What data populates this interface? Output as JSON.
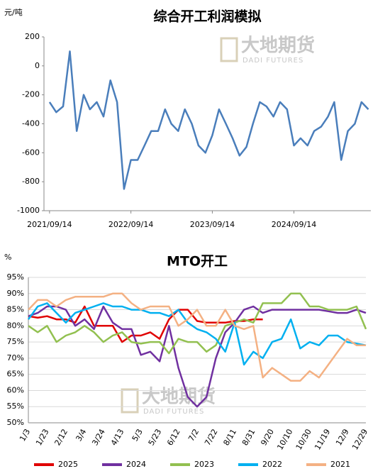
{
  "chart_data": [
    {
      "type": "line",
      "title": "综合开工利润模拟",
      "y_unit": "元/吨",
      "watermark": [
        "大地期货",
        "DADI FUTURES"
      ],
      "xlim": [
        "2021/08/20",
        "2025/08/25"
      ],
      "xticks": [
        "2021/09/14",
        "2022/09/14",
        "2023/09/14",
        "2024/09/14"
      ],
      "ylim": [
        -1000,
        200
      ],
      "yticks": [
        200,
        0,
        -200,
        -400,
        -600,
        -800,
        -1000
      ],
      "grid": false,
      "x": [
        "2021/09/14",
        "2021/10/14",
        "2021/11/14",
        "2021/12/14",
        "2022/01/14",
        "2022/02/14",
        "2022/03/14",
        "2022/04/14",
        "2022/05/14",
        "2022/06/14",
        "2022/07/14",
        "2022/08/14",
        "2022/09/14",
        "2022/10/14",
        "2022/11/14",
        "2022/12/14",
        "2023/01/14",
        "2023/02/14",
        "2023/03/14",
        "2023/04/14",
        "2023/05/14",
        "2023/06/14",
        "2023/07/14",
        "2023/08/14",
        "2023/09/14",
        "2023/10/14",
        "2023/11/14",
        "2023/12/14",
        "2024/01/14",
        "2024/02/14",
        "2024/03/14",
        "2024/04/14",
        "2024/05/14",
        "2024/06/14",
        "2024/07/14",
        "2024/08/14",
        "2024/09/14",
        "2024/10/14",
        "2024/11/14",
        "2024/12/14",
        "2025/01/14",
        "2025/02/14",
        "2025/03/14",
        "2025/04/14",
        "2025/05/14",
        "2025/06/14",
        "2025/07/14",
        "2025/08/14"
      ],
      "series": [
        {
          "name": null,
          "color": "#4a7ebb",
          "values": [
            -250,
            -320,
            -280,
            100,
            -450,
            -200,
            -300,
            -250,
            -350,
            -100,
            -250,
            -850,
            -650,
            -650,
            -550,
            -450,
            -450,
            -300,
            -400,
            -450,
            -300,
            -400,
            -550,
            -600,
            -480,
            -300,
            -400,
            -500,
            -620,
            -560,
            -400,
            -250,
            -280,
            -350,
            -250,
            -300,
            -550,
            -500,
            -550,
            -450,
            -420,
            -350,
            -250,
            -650,
            -450,
            -400,
            -250,
            -300
          ]
        }
      ]
    },
    {
      "type": "line",
      "title": "MTO开工",
      "y_unit": "%",
      "watermark": [
        "大地期货",
        "DADI FUTURES"
      ],
      "ylim": [
        50,
        95
      ],
      "grid": true,
      "legend": "bottom",
      "yticks": [
        {
          "value": 95,
          "label": "95%"
        },
        {
          "value": 90,
          "label": "90%"
        },
        {
          "value": 85,
          "label": "85%"
        },
        {
          "value": 80,
          "label": "80%"
        },
        {
          "value": 75,
          "label": "75%"
        },
        {
          "value": 70,
          "label": "70%"
        },
        {
          "value": 65,
          "label": "65%"
        },
        {
          "value": 60,
          "label": "60%"
        },
        {
          "value": 55,
          "label": "55%"
        },
        {
          "value": 50,
          "label": "50%"
        }
      ],
      "categories": [
        "1/3",
        null,
        "1/23",
        null,
        "2/12",
        null,
        "3/4",
        null,
        "3/24",
        null,
        "4/13",
        null,
        "5/3",
        null,
        "5/23",
        null,
        "6/12",
        null,
        "7/2",
        null,
        "7/22",
        null,
        "8/11",
        null,
        "8/31",
        null,
        "9/20",
        null,
        "10/10",
        null,
        "10/30",
        null,
        "11/19",
        null,
        "12/9",
        null,
        "12/29"
      ],
      "series": [
        {
          "name": "2025",
          "color": "#e00000",
          "values": [
            83,
            82.5,
            83,
            82,
            82,
            81,
            86,
            80,
            80,
            80,
            75,
            77,
            77,
            78,
            76,
            82,
            85,
            85,
            81.5,
            81,
            81,
            81,
            81.5,
            81.5,
            82,
            82,
            null,
            null,
            null,
            null,
            null,
            null,
            null,
            null,
            null,
            null,
            null
          ]
        },
        {
          "name": "2024",
          "color": "#7030a0",
          "values": [
            83,
            84,
            86,
            86,
            85,
            80,
            82,
            79,
            86,
            81,
            79,
            79,
            71,
            72,
            69,
            80,
            67,
            58,
            55,
            58,
            70,
            78,
            81,
            85,
            86,
            84,
            85,
            85,
            85,
            85,
            85,
            85,
            84.5,
            84,
            84,
            85,
            84
          ]
        },
        {
          "name": "2023",
          "color": "#92c050",
          "values": [
            80,
            78,
            80,
            75,
            77,
            78,
            80,
            78,
            75,
            77,
            78,
            75,
            74.5,
            75,
            75,
            71.5,
            76,
            75,
            75,
            72,
            74,
            80,
            81,
            82,
            81,
            87,
            87,
            87,
            90,
            90,
            86,
            86,
            85,
            85,
            85,
            86,
            79
          ]
        },
        {
          "name": "2022",
          "color": "#00b0f0",
          "values": [
            82,
            86,
            87,
            84,
            81,
            84,
            85,
            86,
            87,
            86,
            86,
            85,
            85,
            84,
            84,
            83,
            85,
            81,
            79,
            78,
            76,
            72,
            81,
            68,
            72,
            70,
            75,
            76,
            82,
            73,
            75,
            74,
            77,
            77,
            75,
            74.5,
            74
          ]
        },
        {
          "name": "2021",
          "color": "#f4b183",
          "values": [
            85,
            88,
            88,
            86,
            88,
            89,
            89,
            89,
            89,
            90,
            90,
            87,
            85,
            86,
            86,
            86,
            80,
            82,
            85,
            80,
            80,
            85,
            80,
            79,
            80,
            64,
            67,
            65,
            63,
            63,
            66,
            64,
            68,
            72,
            76,
            74,
            74
          ]
        }
      ]
    }
  ]
}
